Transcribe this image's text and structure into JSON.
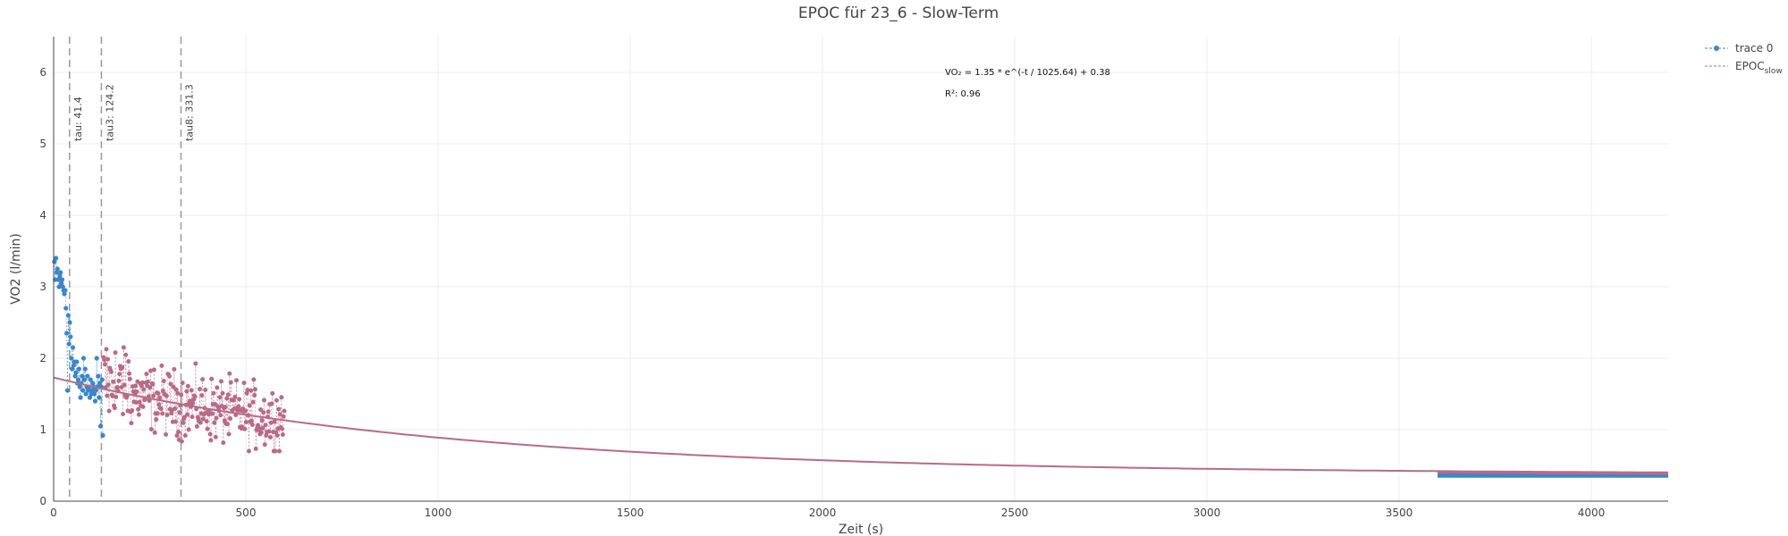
{
  "chart_data": {
    "type": "scatter",
    "title": "EPOC für 23_6 - Slow-Term",
    "xlabel": "Zeit (s)",
    "ylabel": "VO2 (l/min)",
    "xlim": [
      0,
      4200
    ],
    "ylim": [
      0,
      6.5
    ],
    "x_ticks": [
      0,
      500,
      1000,
      1500,
      2000,
      2500,
      3000,
      3500,
      4000
    ],
    "y_ticks": [
      0,
      1,
      2,
      3,
      4,
      5,
      6
    ],
    "grid": true,
    "legend_position": "top-right",
    "colors": {
      "trace0": "#3a86c8",
      "epoc": "#b86b86",
      "vline": "#999999"
    },
    "series": [
      {
        "name": "trace 0",
        "color": "#3a86c8",
        "points": [
          [
            2,
            3.35
          ],
          [
            4,
            3.1
          ],
          [
            6,
            3.4
          ],
          [
            8,
            3.2
          ],
          [
            10,
            3.25
          ],
          [
            12,
            3.1
          ],
          [
            14,
            3.0
          ],
          [
            16,
            3.15
          ],
          [
            18,
            3.2
          ],
          [
            20,
            3.05
          ],
          [
            22,
            3.1
          ],
          [
            24,
            3.0
          ],
          [
            26,
            2.95
          ],
          [
            28,
            2.9
          ],
          [
            30,
            2.95
          ],
          [
            32,
            2.7
          ],
          [
            34,
            2.35
          ],
          [
            36,
            1.55
          ],
          [
            38,
            2.6
          ],
          [
            40,
            2.2
          ],
          [
            42,
            2.5
          ],
          [
            44,
            2.3
          ],
          [
            46,
            2.0
          ],
          [
            48,
            1.85
          ],
          [
            50,
            2.15
          ],
          [
            52,
            1.9
          ],
          [
            54,
            1.95
          ],
          [
            56,
            1.75
          ],
          [
            58,
            1.8
          ],
          [
            60,
            1.95
          ],
          [
            62,
            1.65
          ],
          [
            64,
            1.7
          ],
          [
            66,
            1.85
          ],
          [
            68,
            1.6
          ],
          [
            70,
            1.45
          ],
          [
            72,
            1.65
          ],
          [
            74,
            1.75
          ],
          [
            76,
            1.55
          ],
          [
            78,
            2.0
          ],
          [
            80,
            1.7
          ],
          [
            82,
            1.85
          ],
          [
            84,
            1.5
          ],
          [
            86,
            1.6
          ],
          [
            88,
            1.75
          ],
          [
            90,
            1.55
          ],
          [
            92,
            1.6
          ],
          [
            94,
            1.45
          ],
          [
            96,
            1.7
          ],
          [
            98,
            1.5
          ],
          [
            100,
            1.55
          ],
          [
            102,
            1.65
          ],
          [
            104,
            1.6
          ],
          [
            106,
            1.5
          ],
          [
            108,
            1.4
          ],
          [
            110,
            1.55
          ],
          [
            112,
            2.0
          ],
          [
            114,
            1.6
          ],
          [
            116,
            1.75
          ],
          [
            118,
            1.45
          ],
          [
            120,
            1.65
          ],
          [
            122,
            1.05
          ],
          [
            124,
            1.6
          ],
          [
            126,
            1.7
          ],
          [
            128,
            0.92
          ]
        ],
        "tail": {
          "x": [
            3600,
            4200
          ],
          "y": [
            0.36,
            0.36
          ]
        }
      },
      {
        "name": "EPOCslow",
        "color": "#b86b86",
        "fit": {
          "a": 1.35,
          "tau": 1025.64,
          "c": 0.38,
          "x_range": [
            0,
            4200
          ]
        },
        "tail": {
          "x": [
            3600,
            4200
          ],
          "y": [
            0.4,
            0.38
          ]
        }
      }
    ],
    "vertical_lines": [
      {
        "x": 41.4,
        "label": "tau: 41.4"
      },
      {
        "x": 124.2,
        "label": "tau3: 124.2"
      },
      {
        "x": 331.3,
        "label": "tau8: 331.3"
      }
    ],
    "annotations": {
      "equation": "VO₂ = 1.35 * e^(-t / 1025.64) + 0.38",
      "r2": "R²: 0.96"
    }
  },
  "legend": {
    "trace0": "trace 0",
    "epoc_main": "EPOC",
    "epoc_sub": "slow"
  }
}
